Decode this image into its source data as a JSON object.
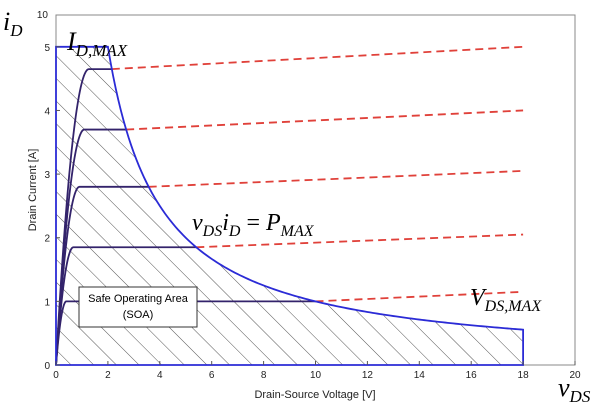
{
  "chart_data": {
    "type": "line",
    "xlabel": "Drain-Source Voltage [V]",
    "ylabel": "Drain Current [A]",
    "xlim": [
      0,
      20
    ],
    "ylim": [
      0,
      5.5
    ],
    "x_ticks": [
      "0",
      "2",
      "4",
      "6",
      "8",
      "10",
      "12",
      "14",
      "16",
      "18",
      "20"
    ],
    "y_ticks": [
      "0",
      "1",
      "2",
      "3",
      "4",
      "5"
    ],
    "y_top_label": "10",
    "grid": false,
    "limits": {
      "i_max": 5,
      "v_max": 18,
      "p_max": 10,
      "v_at_i_max": 2
    },
    "saturation_levels": [
      1,
      1.85,
      2.8,
      3.7,
      4.65
    ],
    "annotations": {
      "id_max": {
        "main": "I",
        "sub": "D,MAX"
      },
      "power": {
        "v": "v",
        "vsub": "DS",
        "i": "i",
        "isub": "D",
        "eq": " = ",
        "p": "P",
        "psub": "MAX"
      },
      "vds_max": {
        "main": "V",
        "sub": "DS,MAX"
      },
      "y_axis_symbol": {
        "main": "i",
        "sub": "D"
      },
      "x_axis_symbol": {
        "main": "v",
        "sub": "DS"
      },
      "soa_box": {
        "line1": "Safe Operating Area",
        "line2": "(SOA)"
      }
    },
    "colors": {
      "boundary": "#2b2bd6",
      "curves": "#33236b",
      "dashed": "#e0413a",
      "hatch": "#555555"
    }
  }
}
